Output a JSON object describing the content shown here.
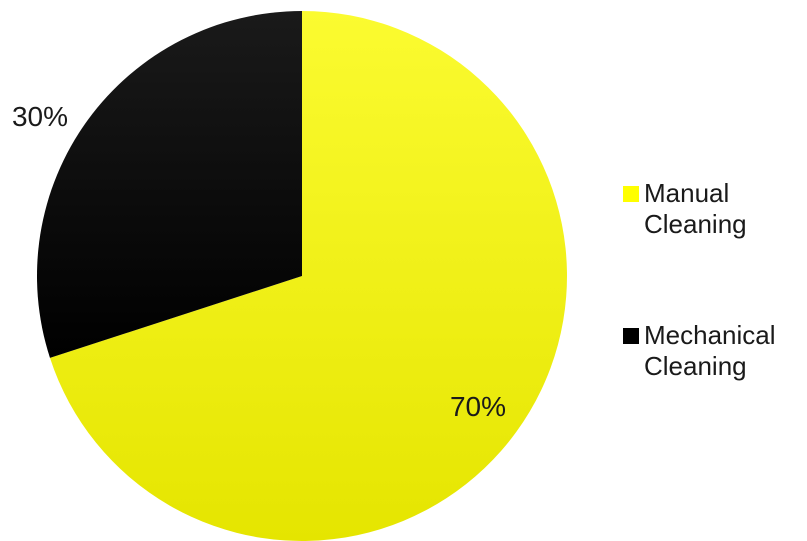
{
  "chart_data": {
    "type": "pie",
    "slices": [
      {
        "label": "Manual Cleaning",
        "legend_lines": [
          "Manual",
          "Cleaning"
        ],
        "value": 70,
        "display": "70%",
        "color": "#ffff00",
        "highlight": "#fbfb30",
        "shadow": "#e5e500"
      },
      {
        "label": "Mechanical Cleaning",
        "legend_lines": [
          "Mechanical",
          "Cleaning"
        ],
        "value": 30,
        "display": "30%",
        "color": "#000000",
        "highlight": "#1a1a1a",
        "shadow": "#000000"
      }
    ],
    "start_angle_deg": 0,
    "direction": "clockwise",
    "legend_position": "right"
  }
}
